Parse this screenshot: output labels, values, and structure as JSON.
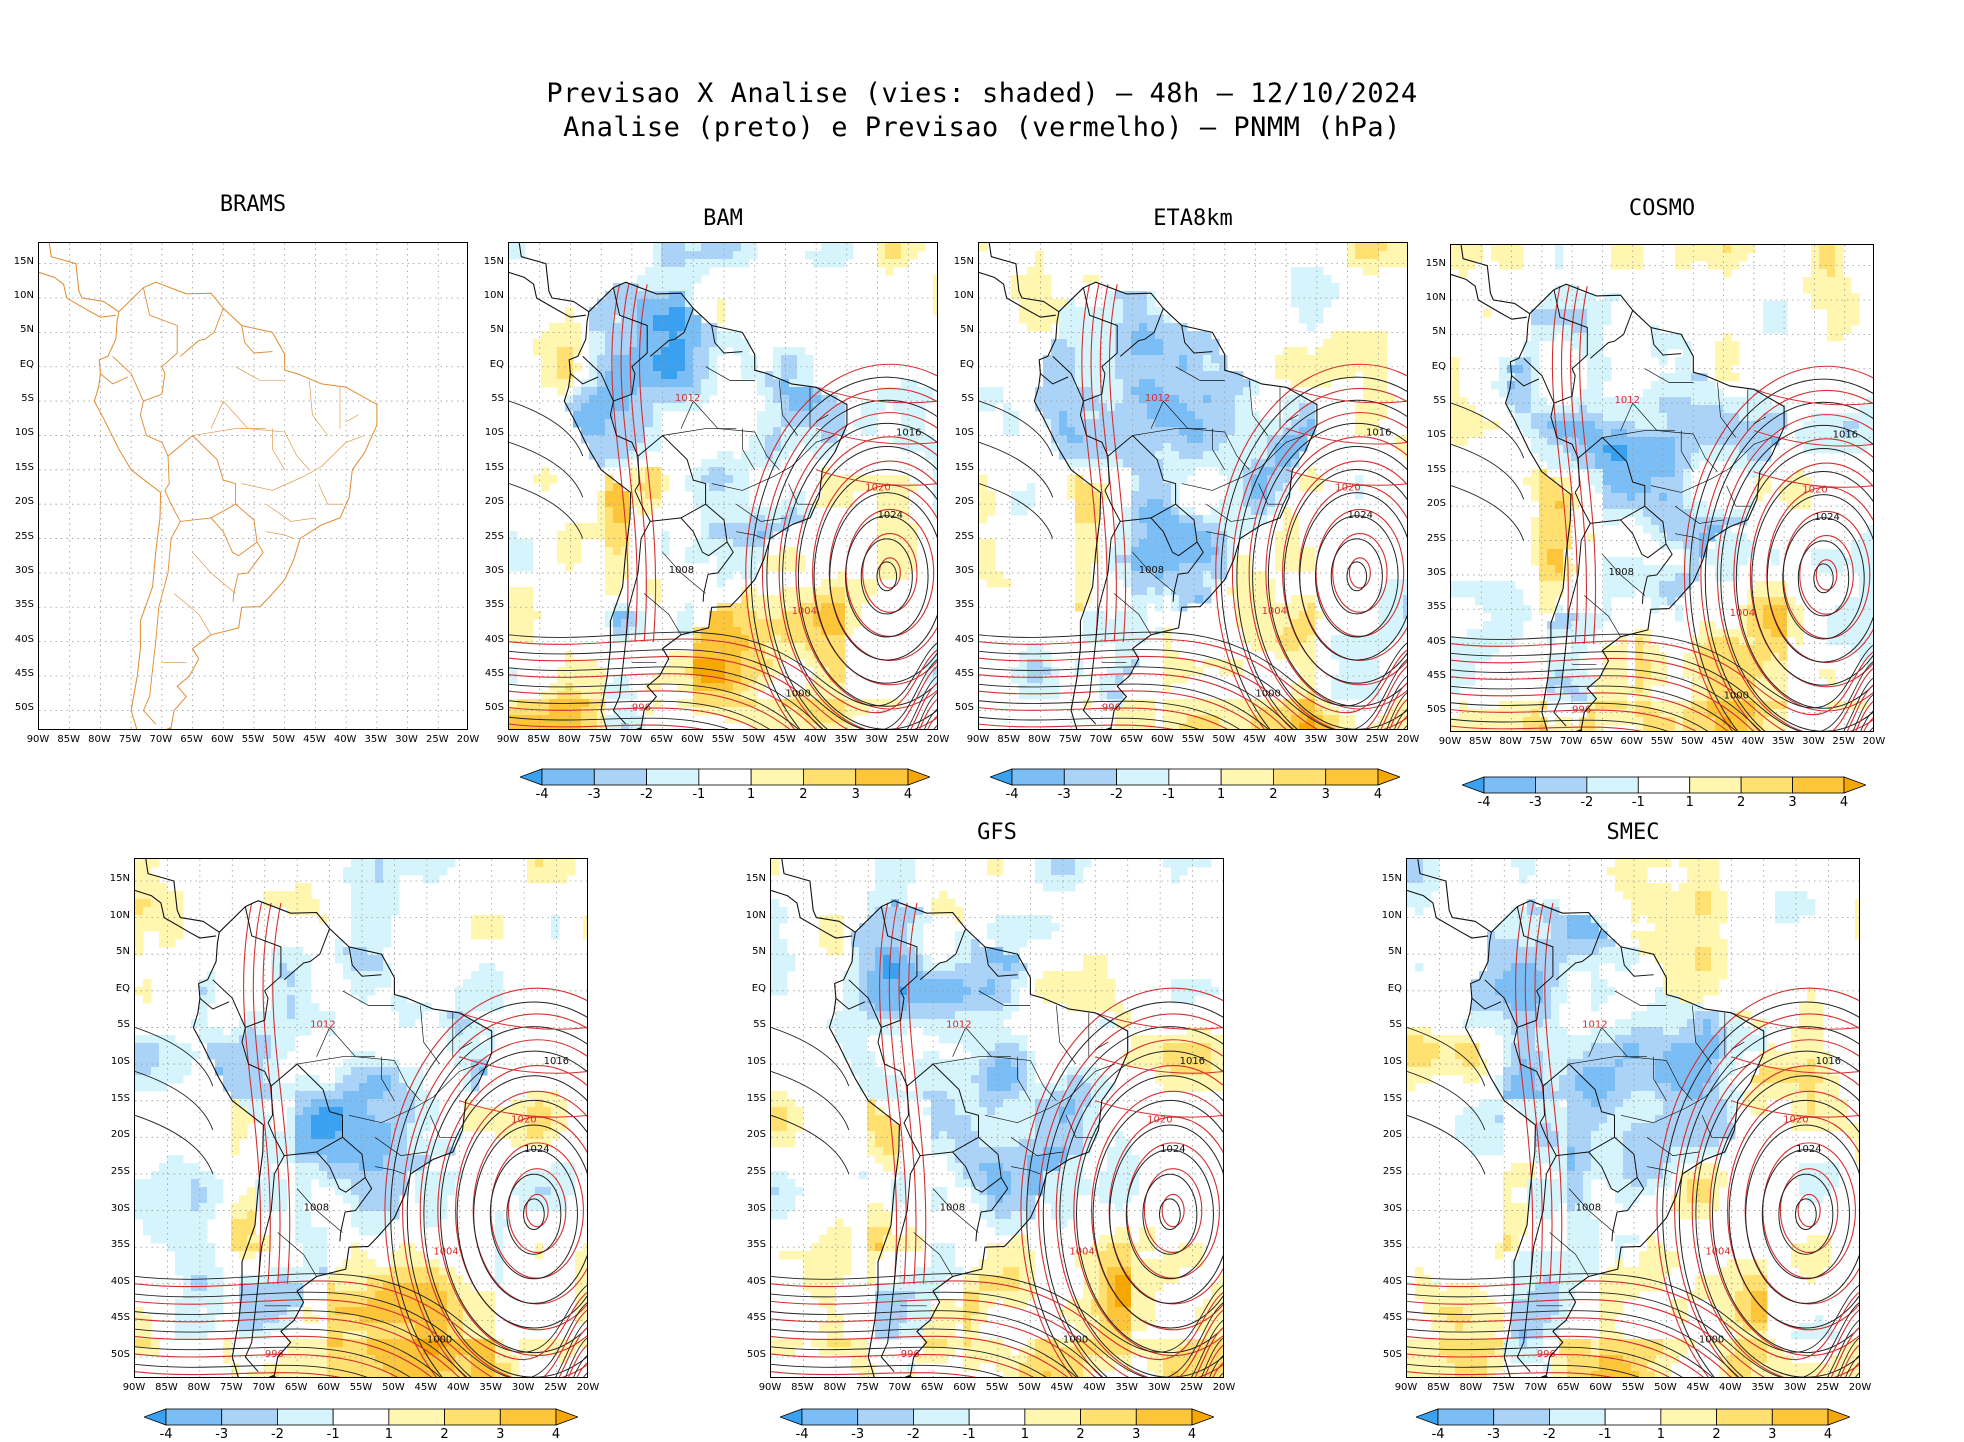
{
  "title_line1": "Previsao X Analise (vies: shaded) – 48h – 12/10/2024",
  "title_line2": "Analise (preto) e Previsao (vermelho) – PNMM (hPa)",
  "lat_labels": [
    "15N",
    "10N",
    "5N",
    "EQ",
    "5S",
    "10S",
    "15S",
    "20S",
    "25S",
    "30S",
    "35S",
    "40S",
    "45S",
    "50S"
  ],
  "lon_labels": [
    "90W",
    "85W",
    "80W",
    "75W",
    "70W",
    "65W",
    "60W",
    "55W",
    "50W",
    "45W",
    "40W",
    "35W",
    "30W",
    "25W",
    "20W"
  ],
  "colorbar_labels": [
    "-4",
    "-3",
    "-2",
    "-1",
    "1",
    "2",
    "3",
    "4"
  ],
  "colorbar_colors": [
    "#3aa0f0",
    "#7bbdf5",
    "#aad3f7",
    "#d6f4fb",
    "#ffffff",
    "#fff6b0",
    "#ffe070",
    "#fcc53a",
    "#f7a800"
  ],
  "contour_label_values": [
    "1024",
    "1020",
    "1016",
    "1012",
    "1008",
    "1004",
    "1000",
    "996"
  ],
  "panels": [
    {
      "name": "BRAMS",
      "has_data": false,
      "has_colorbar": false
    },
    {
      "name": "BAM",
      "has_data": true,
      "has_colorbar": true
    },
    {
      "name": "ETA8km",
      "has_data": true,
      "has_colorbar": true
    },
    {
      "name": "COSMO",
      "has_data": true,
      "has_colorbar": true
    },
    {
      "name": "",
      "has_data": true,
      "has_colorbar": true
    },
    {
      "name": "GFS",
      "has_data": true,
      "has_colorbar": true
    },
    {
      "name": "SMEC",
      "has_data": true,
      "has_colorbar": true
    }
  ]
}
